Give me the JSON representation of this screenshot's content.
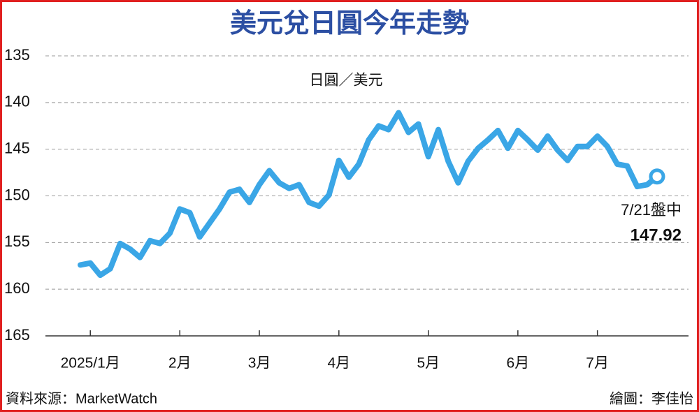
{
  "chart_data": {
    "type": "line",
    "title": "美元兌日圓今年走勢",
    "y_label": "日圓／美元",
    "source": "資料來源：MarketWatch",
    "credit": "繪圖：李佳怡",
    "annotation": "7/21盤中",
    "categories": [
      null,
      "2025/1月",
      null,
      null,
      null,
      null,
      null,
      null,
      null,
      null,
      "2月",
      null,
      null,
      null,
      null,
      null,
      null,
      null,
      "3月",
      null,
      null,
      null,
      null,
      null,
      null,
      null,
      "4月",
      null,
      null,
      null,
      null,
      null,
      null,
      null,
      null,
      "5月",
      null,
      null,
      null,
      null,
      null,
      null,
      null,
      null,
      "6月",
      null,
      null,
      null,
      null,
      null,
      null,
      null,
      "7月",
      null,
      null,
      null,
      null,
      null,
      null
    ],
    "values": [
      157.4,
      157.2,
      158.5,
      157.8,
      155.1,
      155.7,
      156.6,
      154.8,
      155.1,
      154.0,
      151.4,
      151.8,
      154.4,
      152.9,
      151.4,
      149.6,
      149.3,
      150.7,
      148.8,
      147.3,
      148.6,
      149.2,
      148.8,
      150.7,
      151.1,
      149.9,
      146.2,
      148.0,
      146.6,
      144.0,
      142.5,
      142.9,
      141.1,
      143.2,
      142.3,
      145.8,
      142.9,
      146.3,
      148.6,
      146.3,
      144.9,
      144.0,
      143.0,
      144.9,
      143.0,
      144.0,
      145.1,
      143.6,
      145.1,
      146.2,
      144.7,
      144.7,
      143.6,
      144.7,
      146.6,
      146.8,
      149.0,
      148.8,
      147.92
    ],
    "color": "#3aa6e6",
    "ylim": [
      135,
      165
    ],
    "y_inverted": true,
    "yticks": [
      135,
      140,
      145,
      150,
      155,
      160,
      165
    ],
    "grid": true
  }
}
